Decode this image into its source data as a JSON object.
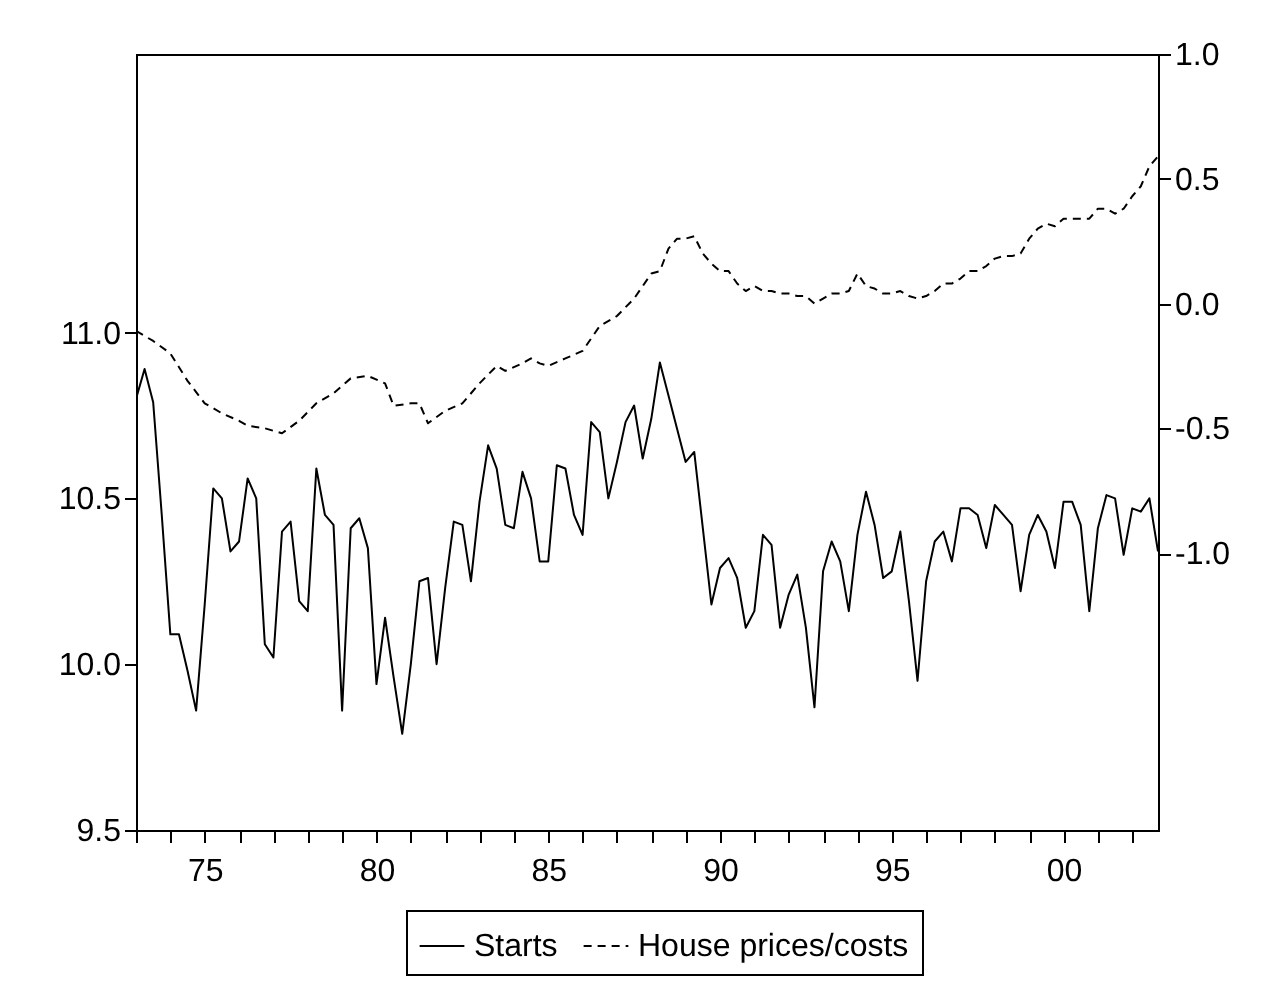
{
  "chart_data": {
    "type": "line",
    "x": [
      1973,
      1973.25,
      1973.5,
      1973.75,
      1974,
      1974.25,
      1974.5,
      1974.75,
      1975,
      1975.25,
      1975.5,
      1975.75,
      1976,
      1976.25,
      1976.5,
      1976.75,
      1977,
      1977.25,
      1977.5,
      1977.75,
      1978,
      1978.25,
      1978.5,
      1978.75,
      1979,
      1979.25,
      1979.5,
      1979.75,
      1980,
      1980.25,
      1980.5,
      1980.75,
      1981,
      1981.25,
      1981.5,
      1981.75,
      1982,
      1982.25,
      1982.5,
      1982.75,
      1983,
      1983.25,
      1983.5,
      1983.75,
      1984,
      1984.25,
      1984.5,
      1984.75,
      1985,
      1985.25,
      1985.5,
      1985.75,
      1986,
      1986.25,
      1986.5,
      1986.75,
      1987,
      1987.25,
      1987.5,
      1987.75,
      1988,
      1988.25,
      1988.5,
      1988.75,
      1989,
      1989.25,
      1989.5,
      1989.75,
      1990,
      1990.25,
      1990.5,
      1990.75,
      1991,
      1991.25,
      1991.5,
      1991.75,
      1992,
      1992.25,
      1992.5,
      1992.75,
      1993,
      1993.25,
      1993.5,
      1993.75,
      1994,
      1994.25,
      1994.5,
      1994.75,
      1995,
      1995.25,
      1995.5,
      1995.75,
      1996,
      1996.25,
      1996.5,
      1996.75,
      1997,
      1997.25,
      1997.5,
      1997.75,
      1998,
      1998.25,
      1998.5,
      1998.75,
      1999,
      1999.25,
      1999.5,
      1999.75,
      2000,
      2000.25,
      2000.5,
      2000.75,
      2001,
      2001.25,
      2001.5,
      2001.75,
      2002,
      2002.25,
      2002.5,
      2002.75
    ],
    "series": [
      {
        "name": "Starts",
        "color": "#000000",
        "line_style": "solid",
        "values": [
          10.8,
          10.89,
          10.79,
          10.45,
          10.09,
          10.09,
          9.98,
          9.86,
          10.18,
          10.53,
          10.5,
          10.34,
          10.37,
          10.56,
          10.5,
          10.06,
          10.02,
          10.4,
          10.43,
          10.19,
          10.16,
          10.59,
          10.45,
          10.42,
          9.86,
          10.41,
          10.44,
          10.35,
          9.94,
          10.14,
          9.96,
          9.79,
          10.0,
          10.25,
          10.26,
          10.0,
          10.23,
          10.43,
          10.42,
          10.25,
          10.49,
          10.66,
          10.59,
          10.42,
          10.41,
          10.58,
          10.5,
          10.31,
          10.31,
          10.6,
          10.59,
          10.45,
          10.39,
          10.73,
          10.7,
          10.5,
          10.61,
          10.73,
          10.78,
          10.62,
          10.74,
          10.91,
          10.81,
          10.71,
          10.61,
          10.64,
          10.41,
          10.18,
          10.29,
          10.32,
          10.26,
          10.11,
          10.16,
          10.39,
          10.36,
          10.11,
          10.21,
          10.27,
          10.11,
          9.87,
          10.28,
          10.37,
          10.31,
          10.16,
          10.39,
          10.52,
          10.42,
          10.26,
          10.28,
          10.4,
          10.19,
          9.95,
          10.25,
          10.37,
          10.4,
          10.31,
          10.47,
          10.47,
          10.45,
          10.35,
          10.48,
          10.45,
          10.42,
          10.22,
          10.39,
          10.45,
          10.4,
          10.29,
          10.49,
          10.49,
          10.42,
          10.16,
          10.41,
          10.51,
          10.5,
          10.33,
          10.47,
          10.46,
          10.5,
          10.34
        ]
      },
      {
        "name": "House prices/costs",
        "color": "#000000",
        "line_style": "dashed",
        "axis": "y2",
        "x": [
          1973,
          1973.5,
          1974,
          1974.5,
          1975,
          1975.5,
          1976,
          1976.25,
          1976.75,
          1977.25,
          1977.75,
          1978.25,
          1978.75,
          1979.25,
          1979.75,
          1980.25,
          1980.5,
          1981,
          1981.25,
          1981.5,
          1982,
          1982.5,
          1983,
          1983.5,
          1983.75,
          1984.25,
          1984.5,
          1984.75,
          1985,
          1985.5,
          1986,
          1986.5,
          1987,
          1987.5,
          1988,
          1988.25,
          1988.5,
          1988.75,
          1989,
          1989.25,
          1989.5,
          1989.75,
          1990,
          1990.25,
          1990.5,
          1990.75,
          1991,
          1991.25,
          1991.5,
          1991.75,
          1992,
          1992.25,
          1992.5,
          1992.75,
          1993,
          1993.25,
          1993.5,
          1993.75,
          1994,
          1994.25,
          1994.5,
          1994.75,
          1995,
          1995.25,
          1995.5,
          1995.75,
          1996,
          1996.25,
          1996.5,
          1996.75,
          1997,
          1997.25,
          1997.5,
          1997.75,
          1998,
          1998.25,
          1998.5,
          1998.75,
          1999,
          1999.25,
          1999.5,
          1999.75,
          2000,
          2000.25,
          2000.5,
          2000.75,
          2001,
          2001.25,
          2001.5,
          2001.75,
          2002,
          2002.25,
          2002.5,
          2002.75
        ],
        "values": [
          -0.11,
          -0.15,
          -0.2,
          -0.31,
          -0.4,
          -0.44,
          -0.47,
          -0.49,
          -0.5,
          -0.52,
          -0.47,
          -0.4,
          -0.36,
          -0.3,
          -0.29,
          -0.32,
          -0.41,
          -0.4,
          -0.4,
          -0.48,
          -0.43,
          -0.4,
          -0.32,
          -0.25,
          -0.27,
          -0.24,
          -0.22,
          -0.24,
          -0.25,
          -0.22,
          -0.19,
          -0.09,
          -0.05,
          0.02,
          0.12,
          0.13,
          0.22,
          0.26,
          0.26,
          0.27,
          0.2,
          0.16,
          0.13,
          0.13,
          0.08,
          0.05,
          0.07,
          0.05,
          0.05,
          0.04,
          0.04,
          0.03,
          0.03,
          0.0,
          0.02,
          0.04,
          0.04,
          0.05,
          0.12,
          0.07,
          0.06,
          0.04,
          0.04,
          0.05,
          0.03,
          0.02,
          0.03,
          0.05,
          0.08,
          0.08,
          0.1,
          0.13,
          0.13,
          0.15,
          0.18,
          0.19,
          0.19,
          0.2,
          0.26,
          0.3,
          0.32,
          0.31,
          0.34,
          0.34,
          0.34,
          0.34,
          0.38,
          0.38,
          0.36,
          0.38,
          0.43,
          0.47,
          0.55,
          0.59
        ]
      }
    ],
    "xlim": [
      1973,
      2002.75
    ],
    "xticks": [
      {
        "value": 1973,
        "label": null
      },
      {
        "value": 1974,
        "label": null
      },
      {
        "value": 1975,
        "label": "75"
      },
      {
        "value": 1976,
        "label": null
      },
      {
        "value": 1977,
        "label": null
      },
      {
        "value": 1978,
        "label": null
      },
      {
        "value": 1979,
        "label": null
      },
      {
        "value": 1980,
        "label": "80"
      },
      {
        "value": 1981,
        "label": null
      },
      {
        "value": 1982,
        "label": null
      },
      {
        "value": 1983,
        "label": null
      },
      {
        "value": 1984,
        "label": null
      },
      {
        "value": 1985,
        "label": "85"
      },
      {
        "value": 1986,
        "label": null
      },
      {
        "value": 1987,
        "label": null
      },
      {
        "value": 1988,
        "label": null
      },
      {
        "value": 1989,
        "label": null
      },
      {
        "value": 1990,
        "label": "90"
      },
      {
        "value": 1991,
        "label": null
      },
      {
        "value": 1992,
        "label": null
      },
      {
        "value": 1993,
        "label": null
      },
      {
        "value": 1994,
        "label": null
      },
      {
        "value": 1995,
        "label": "95"
      },
      {
        "value": 1996,
        "label": null
      },
      {
        "value": 1997,
        "label": null
      },
      {
        "value": 1998,
        "label": null
      },
      {
        "value": 1999,
        "label": null
      },
      {
        "value": 2000,
        "label": "00"
      },
      {
        "value": 2001,
        "label": null
      },
      {
        "value": 2002,
        "label": null
      }
    ],
    "ylim": [
      9.5,
      11.84
    ],
    "yticks": [
      {
        "value": 9.5,
        "label": "9.5"
      },
      {
        "value": 10,
        "label": "10.0"
      },
      {
        "value": 10.5,
        "label": "10.5"
      },
      {
        "value": 11,
        "label": "11.0"
      }
    ],
    "y2lim": [
      -2.11,
      1.0
    ],
    "y2ticks": [
      {
        "value": -1,
        "label": "-1.0"
      },
      {
        "value": -0.5,
        "label": "-0.5"
      },
      {
        "value": 0,
        "label": "0.0"
      },
      {
        "value": 0.5,
        "label": "0.5"
      },
      {
        "value": 1,
        "label": "1.0"
      }
    ],
    "grid": false,
    "legend": "bottom"
  }
}
